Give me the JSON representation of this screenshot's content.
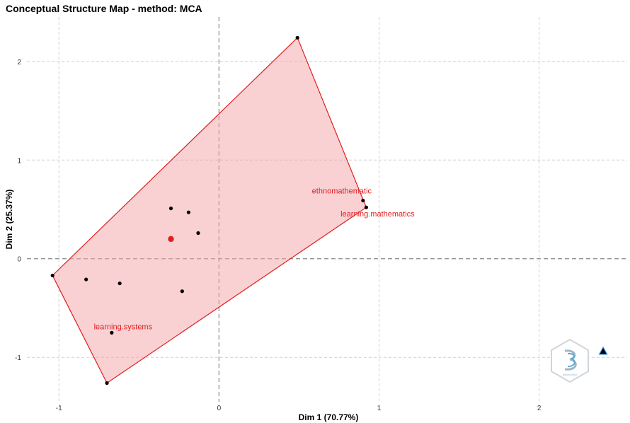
{
  "chart_data": {
    "type": "scatter",
    "title": "Conceptual Structure Map - method: MCA",
    "xlabel": "Dim 1 (70.77%)",
    "ylabel": "Dim 2 (25.37%)",
    "xlim": [
      -1.2,
      2.55
    ],
    "ylim": [
      -1.45,
      2.45
    ],
    "x_ticks": [
      -1,
      0,
      1,
      2
    ],
    "y_ticks": [
      -1,
      0,
      1,
      2
    ],
    "grid": true,
    "cluster_color": "#e02020",
    "cluster_fill": "#f4a3a8",
    "hull": [
      {
        "x": 0.49,
        "y": 2.24
      },
      {
        "x": 0.92,
        "y": 0.52
      },
      {
        "x": -0.7,
        "y": -1.26
      },
      {
        "x": -1.04,
        "y": -0.17
      }
    ],
    "points": [
      {
        "x": 0.49,
        "y": 2.24,
        "label": ""
      },
      {
        "x": 0.9,
        "y": 0.59,
        "label": "ethnomathematic"
      },
      {
        "x": 0.92,
        "y": 0.52,
        "label": "learning.mathematics"
      },
      {
        "x": -0.3,
        "y": 0.51,
        "label": ""
      },
      {
        "x": -0.19,
        "y": 0.47,
        "label": ""
      },
      {
        "x": -0.13,
        "y": 0.26,
        "label": ""
      },
      {
        "x": -1.04,
        "y": -0.17,
        "label": ""
      },
      {
        "x": -0.83,
        "y": -0.21,
        "label": ""
      },
      {
        "x": -0.62,
        "y": -0.25,
        "label": ""
      },
      {
        "x": -0.23,
        "y": -0.33,
        "label": ""
      },
      {
        "x": -0.67,
        "y": -0.75,
        "label": "learning.systems"
      },
      {
        "x": -0.7,
        "y": -1.26,
        "label": ""
      }
    ],
    "centroid": {
      "x": -0.3,
      "y": 0.2
    },
    "outlier": {
      "x": 2.4,
      "y": -0.94,
      "marker": "triangle"
    }
  },
  "logo": {
    "icon": "bibliometrix-hexagon-logo-icon",
    "text": "bibliometrix"
  }
}
